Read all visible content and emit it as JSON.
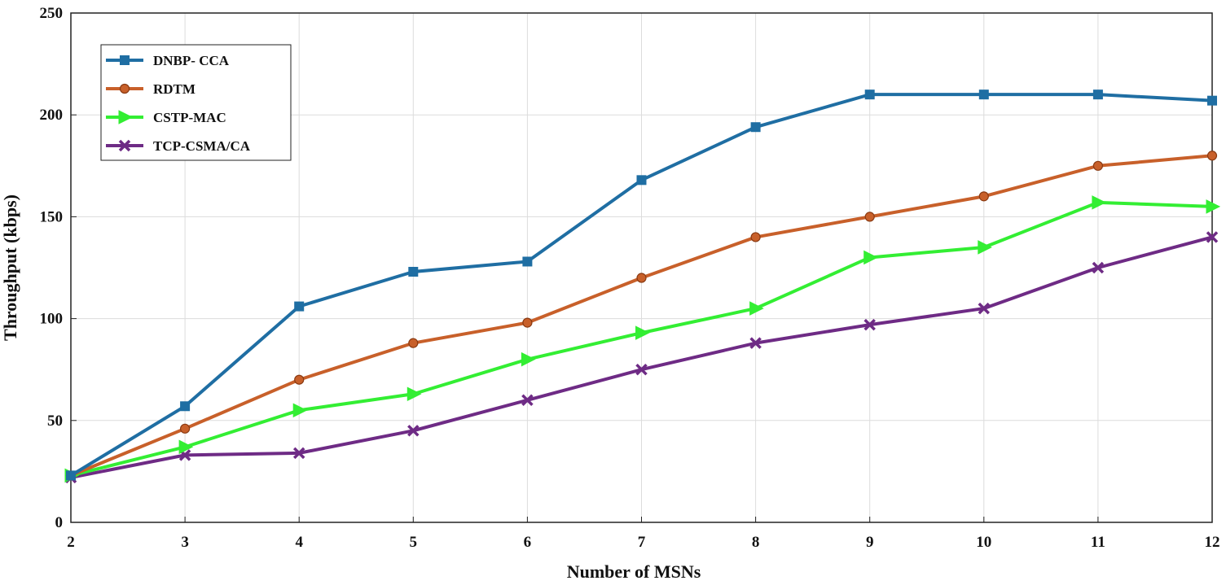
{
  "chart_data": {
    "type": "line",
    "title": "",
    "xlabel": "Number of MSNs",
    "ylabel": "Throughput (kbps)",
    "x": [
      2,
      3,
      4,
      5,
      6,
      7,
      8,
      9,
      10,
      11,
      12
    ],
    "xlim": [
      2,
      12
    ],
    "ylim": [
      0,
      250
    ],
    "yticks": [
      0,
      50,
      100,
      150,
      200,
      250
    ],
    "grid": true,
    "legend_position": "top-left",
    "series": [
      {
        "name": "DNBP- CCA",
        "color": "#1f6ea3",
        "marker": "square",
        "values": [
          23,
          57,
          106,
          123,
          128,
          168,
          194,
          210,
          210,
          210,
          207
        ]
      },
      {
        "name": "RDTM",
        "color": "#c8602a",
        "marker": "circle",
        "values": [
          23,
          46,
          70,
          88,
          98,
          120,
          140,
          150,
          160,
          175,
          180
        ]
      },
      {
        "name": "CSTP-MAC",
        "color": "#33ee33",
        "marker": "triangle-right",
        "values": [
          23,
          37,
          55,
          63,
          80,
          93,
          105,
          130,
          135,
          157,
          155
        ]
      },
      {
        "name": "TCP-CSMA/CA",
        "color": "#6e2b85",
        "marker": "x",
        "values": [
          22,
          33,
          34,
          45,
          60,
          75,
          88,
          97,
          105,
          125,
          140
        ]
      }
    ]
  }
}
